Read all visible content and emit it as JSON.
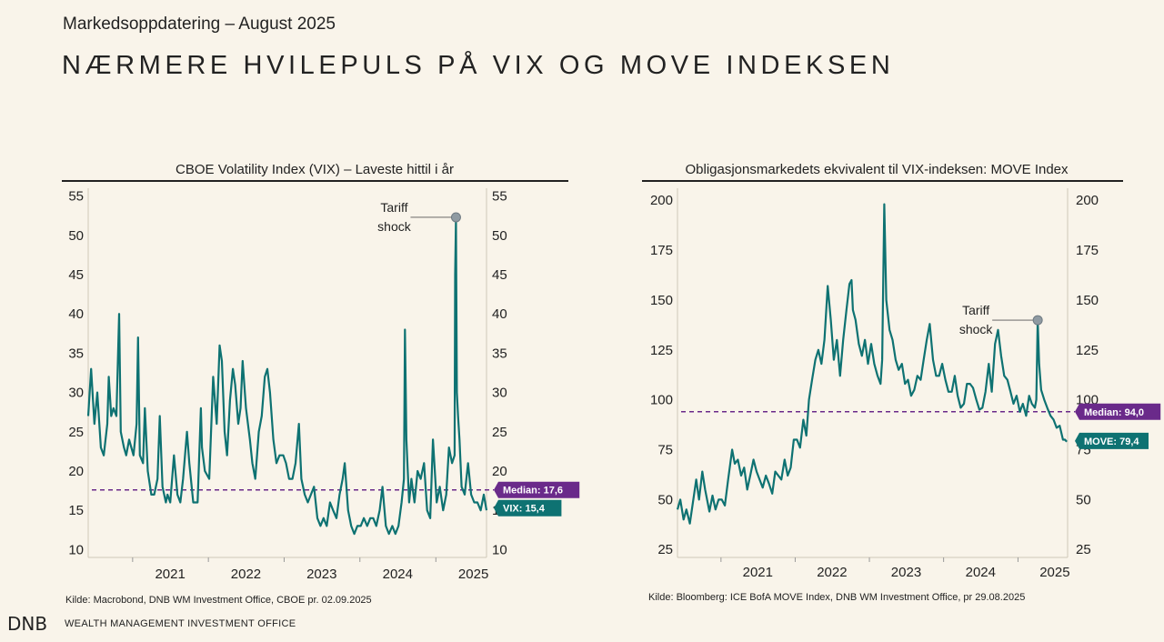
{
  "header": {
    "subtitle": "Markedsoppdatering – August 2025",
    "title": "NÆRMERE HVILEPULS PÅ VIX OG MOVE INDEKSEN"
  },
  "footer": {
    "logo": "DNB",
    "office": "WEALTH MANAGEMENT INVESTMENT OFFICE"
  },
  "colors": {
    "series": "#0e7272",
    "median": "#6a2a8a",
    "marker": "#8f9aa2",
    "axis": "#cfc8b8"
  },
  "chart_data": [
    {
      "type": "line",
      "title": "CBOE Volatility Index (VIX) – Laveste hittil i år",
      "source": "Kilde: Macrobond, DNB WM Investment Office, CBOE pr. 02.09.2025",
      "ylim": [
        9,
        56
      ],
      "yticks": [
        10,
        15,
        20,
        25,
        30,
        35,
        40,
        45,
        50,
        55
      ],
      "xlim": [
        "2020-06-01",
        "2025-09-02"
      ],
      "xticks": [
        "2021",
        "2022",
        "2023",
        "2024",
        "2025"
      ],
      "median": 17.6,
      "median_label": "Median: 17,6",
      "last_label": "VIX: 15,4",
      "last_value": 15.4,
      "annotation": {
        "line1": "Tariff",
        "line2": "shock",
        "x": "2025-04-08",
        "y": 52.3
      },
      "series": [
        {
          "x": [
            "2020-06-01",
            "2020-06-15",
            "2020-07-01",
            "2020-07-15",
            "2020-08-01",
            "2020-08-15",
            "2020-09-01",
            "2020-09-08",
            "2020-09-20",
            "2020-10-01",
            "2020-10-15",
            "2020-10-28",
            "2020-11-05",
            "2020-11-20",
            "2020-12-01",
            "2020-12-15",
            "2021-01-05",
            "2021-01-20",
            "2021-01-27",
            "2021-02-05",
            "2021-02-20",
            "2021-03-01",
            "2021-03-15",
            "2021-04-01",
            "2021-04-15",
            "2021-05-01",
            "2021-05-12",
            "2021-05-25",
            "2021-06-10",
            "2021-06-18",
            "2021-07-01",
            "2021-07-19",
            "2021-08-05",
            "2021-08-19",
            "2021-09-01",
            "2021-09-20",
            "2021-10-01",
            "2021-10-20",
            "2021-11-10",
            "2021-11-26",
            "2021-12-01",
            "2021-12-15",
            "2022-01-05",
            "2022-01-24",
            "2022-02-10",
            "2022-02-24",
            "2022-03-07",
            "2022-03-20",
            "2022-04-01",
            "2022-04-15",
            "2022-04-29",
            "2022-05-10",
            "2022-05-25",
            "2022-06-05",
            "2022-06-15",
            "2022-07-01",
            "2022-07-20",
            "2022-08-01",
            "2022-08-15",
            "2022-09-01",
            "2022-09-15",
            "2022-09-30",
            "2022-10-12",
            "2022-10-25",
            "2022-11-10",
            "2022-11-25",
            "2022-12-10",
            "2022-12-28",
            "2023-01-10",
            "2023-01-25",
            "2023-02-10",
            "2023-02-25",
            "2023-03-13",
            "2023-03-25",
            "2023-04-10",
            "2023-04-25",
            "2023-05-10",
            "2023-05-25",
            "2023-06-10",
            "2023-06-25",
            "2023-07-10",
            "2023-07-25",
            "2023-08-10",
            "2023-08-25",
            "2023-09-10",
            "2023-09-25",
            "2023-10-10",
            "2023-10-20",
            "2023-11-05",
            "2023-11-20",
            "2023-12-05",
            "2023-12-20",
            "2024-01-05",
            "2024-01-20",
            "2024-02-05",
            "2024-02-20",
            "2024-03-05",
            "2024-03-20",
            "2024-04-05",
            "2024-04-19",
            "2024-05-05",
            "2024-05-20",
            "2024-06-05",
            "2024-06-20",
            "2024-07-05",
            "2024-07-20",
            "2024-07-31",
            "2024-08-05",
            "2024-08-12",
            "2024-08-25",
            "2024-09-05",
            "2024-09-20",
            "2024-10-05",
            "2024-10-20",
            "2024-11-05",
            "2024-11-20",
            "2024-12-05",
            "2024-12-18",
            "2025-01-05",
            "2025-01-20",
            "2025-02-05",
            "2025-02-20",
            "2025-03-05",
            "2025-03-20",
            "2025-04-01",
            "2025-04-04",
            "2025-04-08",
            "2025-04-12",
            "2025-04-18",
            "2025-04-25",
            "2025-05-05",
            "2025-05-20",
            "2025-06-05",
            "2025-06-20",
            "2025-07-05",
            "2025-07-20",
            "2025-08-05",
            "2025-08-20",
            "2025-09-02"
          ],
          "y": [
            27,
            33,
            26,
            30,
            23,
            22,
            26,
            32,
            27,
            28,
            27,
            40,
            25,
            23,
            22,
            24,
            22,
            26,
            37,
            22,
            21,
            28,
            20,
            17,
            17,
            19,
            27,
            18,
            16,
            17,
            16,
            22,
            17,
            16,
            19,
            25,
            21,
            16,
            16,
            28,
            23,
            20,
            19,
            32,
            26,
            36,
            34,
            25,
            22,
            29,
            33,
            31,
            26,
            28,
            34,
            28,
            24,
            21,
            19,
            25,
            27,
            32,
            33,
            30,
            24,
            21,
            22,
            22,
            21,
            19,
            19,
            21,
            26,
            19,
            17,
            16,
            17,
            18,
            14,
            13,
            14,
            13,
            16,
            15,
            14,
            17,
            19,
            21,
            15,
            13,
            12,
            13,
            13,
            14,
            13,
            14,
            14,
            13,
            15,
            18,
            13,
            12,
            13,
            12,
            13,
            16,
            19,
            38,
            24,
            16,
            19,
            16,
            20,
            19,
            21,
            15,
            14,
            24,
            16,
            18,
            15,
            17,
            23,
            21,
            22,
            45,
            52,
            30,
            27,
            24,
            18,
            17,
            21,
            17,
            16,
            16,
            15,
            17,
            15
          ]
        }
      ]
    },
    {
      "type": "line",
      "title": "Obligasjonsmarkedets ekvivalent til VIX-indeksen: MOVE Index",
      "source": "Kilde: Bloomberg: ICE BofA MOVE Index, DNB WM Investment Office, pr 29.08.2025",
      "ylim": [
        21,
        206
      ],
      "yticks": [
        25,
        50,
        75,
        100,
        125,
        150,
        175,
        200
      ],
      "xlim": [
        "2020-06-01",
        "2025-09-02"
      ],
      "xticks": [
        "2021",
        "2022",
        "2023",
        "2024",
        "2025"
      ],
      "median": 94.0,
      "median_label": "Median: 94,0",
      "last_label": "MOVE: 79,4",
      "last_value": 79.4,
      "annotation": {
        "line1": "Tariff",
        "line2": "shock",
        "x": "2025-04-08",
        "y": 139.9
      },
      "series": [
        {
          "x": [
            "2020-06-01",
            "2020-06-15",
            "2020-07-01",
            "2020-07-15",
            "2020-08-01",
            "2020-08-15",
            "2020-09-01",
            "2020-09-15",
            "2020-10-01",
            "2020-10-15",
            "2020-11-05",
            "2020-11-20",
            "2020-12-05",
            "2020-12-20",
            "2021-01-05",
            "2021-01-20",
            "2021-02-05",
            "2021-02-25",
            "2021-03-10",
            "2021-03-25",
            "2021-04-10",
            "2021-04-25",
            "2021-05-10",
            "2021-05-25",
            "2021-06-10",
            "2021-06-25",
            "2021-07-10",
            "2021-07-25",
            "2021-08-10",
            "2021-08-25",
            "2021-09-10",
            "2021-09-25",
            "2021-10-10",
            "2021-10-25",
            "2021-11-10",
            "2021-11-25",
            "2021-12-10",
            "2021-12-25",
            "2022-01-10",
            "2022-01-25",
            "2022-02-10",
            "2022-02-25",
            "2022-03-10",
            "2022-03-25",
            "2022-04-10",
            "2022-04-25",
            "2022-05-10",
            "2022-05-25",
            "2022-06-10",
            "2022-06-25",
            "2022-07-10",
            "2022-07-25",
            "2022-08-10",
            "2022-08-25",
            "2022-09-10",
            "2022-09-25",
            "2022-10-05",
            "2022-10-12",
            "2022-10-25",
            "2022-11-10",
            "2022-11-25",
            "2022-12-10",
            "2022-12-25",
            "2023-01-10",
            "2023-01-25",
            "2023-02-10",
            "2023-02-25",
            "2023-03-05",
            "2023-03-15",
            "2023-03-25",
            "2023-04-10",
            "2023-04-25",
            "2023-05-10",
            "2023-05-25",
            "2023-06-10",
            "2023-06-25",
            "2023-07-10",
            "2023-07-25",
            "2023-08-10",
            "2023-08-25",
            "2023-09-10",
            "2023-09-25",
            "2023-10-10",
            "2023-10-25",
            "2023-11-10",
            "2023-11-25",
            "2023-12-10",
            "2023-12-25",
            "2024-01-10",
            "2024-01-25",
            "2024-02-10",
            "2024-02-25",
            "2024-03-10",
            "2024-03-25",
            "2024-04-10",
            "2024-04-25",
            "2024-05-10",
            "2024-05-25",
            "2024-06-10",
            "2024-06-25",
            "2024-07-10",
            "2024-07-25",
            "2024-08-10",
            "2024-08-25",
            "2024-09-10",
            "2024-09-25",
            "2024-10-10",
            "2024-10-25",
            "2024-11-10",
            "2024-11-25",
            "2024-12-10",
            "2024-12-25",
            "2025-01-10",
            "2025-01-25",
            "2025-02-10",
            "2025-02-25",
            "2025-03-10",
            "2025-03-25",
            "2025-04-01",
            "2025-04-08",
            "2025-04-15",
            "2025-04-25",
            "2025-05-10",
            "2025-05-25",
            "2025-06-10",
            "2025-06-25",
            "2025-07-10",
            "2025-07-25",
            "2025-08-10",
            "2025-08-20",
            "2025-08-29"
          ],
          "y": [
            45,
            50,
            40,
            45,
            38,
            48,
            60,
            50,
            64,
            55,
            44,
            52,
            45,
            50,
            50,
            47,
            60,
            75,
            68,
            70,
            62,
            66,
            55,
            62,
            70,
            64,
            60,
            56,
            62,
            58,
            53,
            64,
            62,
            60,
            70,
            62,
            66,
            80,
            80,
            76,
            90,
            82,
            100,
            110,
            120,
            125,
            118,
            130,
            157,
            140,
            120,
            130,
            112,
            130,
            145,
            158,
            160,
            145,
            140,
            128,
            122,
            130,
            118,
            128,
            118,
            112,
            108,
            120,
            198,
            150,
            135,
            130,
            120,
            115,
            118,
            108,
            110,
            102,
            105,
            112,
            110,
            120,
            130,
            138,
            120,
            112,
            112,
            118,
            110,
            104,
            104,
            112,
            102,
            96,
            98,
            108,
            108,
            106,
            100,
            95,
            96,
            104,
            118,
            104,
            128,
            135,
            122,
            112,
            110,
            104,
            98,
            102,
            94,
            98,
            92,
            102,
            98,
            96,
            100,
            140,
            118,
            105,
            100,
            96,
            92,
            90,
            86,
            87,
            80,
            80,
            79
          ]
        }
      ]
    }
  ]
}
